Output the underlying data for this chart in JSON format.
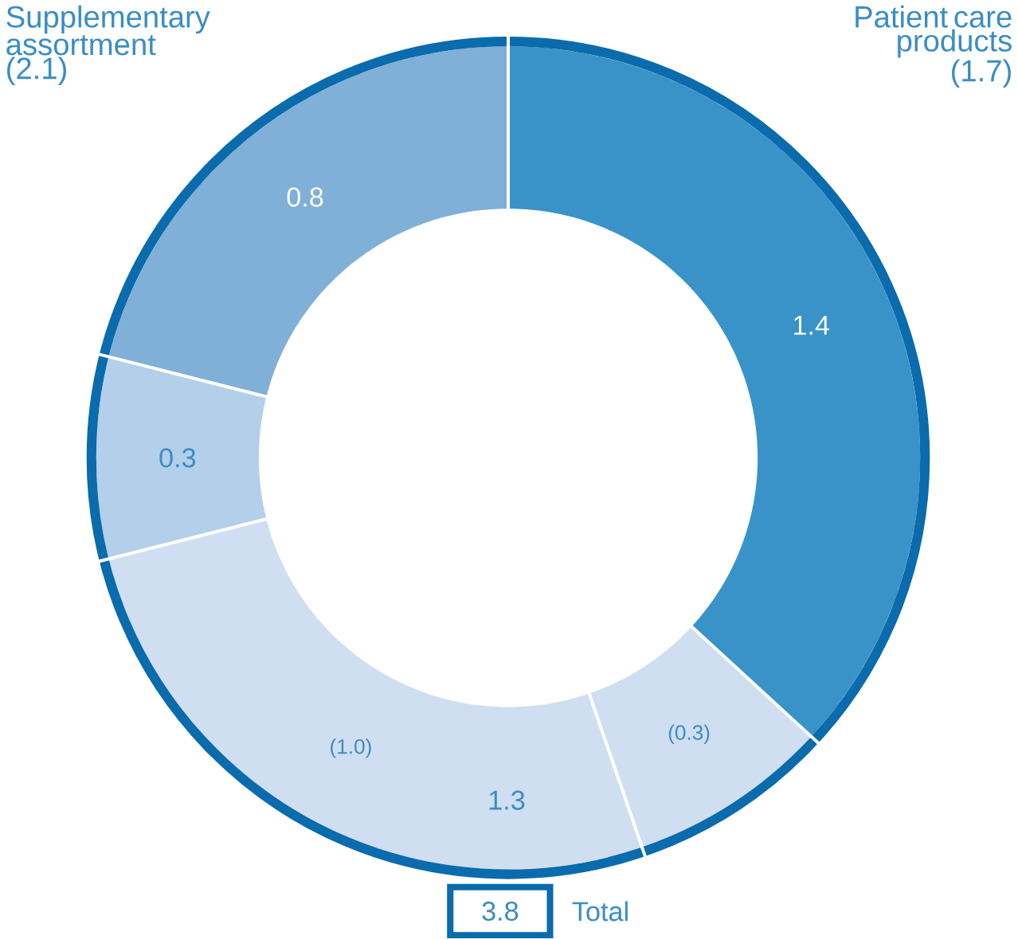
{
  "chart_data": {
    "type": "donut",
    "categories": [
      null,
      null,
      null,
      null,
      null
    ],
    "values": [
      1.4,
      0.3,
      1.0,
      0.3,
      0.8
    ],
    "colors": [
      "#3a93c8",
      "#cfdef0",
      "#cfdef0",
      "#b4cfea",
      "#80afd7"
    ],
    "value_labels": [
      "1.4",
      "(0.3)",
      "(1.0)",
      "0.3",
      "0.8"
    ],
    "annotations": [
      "Patient care products (1.7)",
      "Supplementary assortment (2.1)",
      "1.3",
      "3.8",
      "Total"
    ]
  }
}
